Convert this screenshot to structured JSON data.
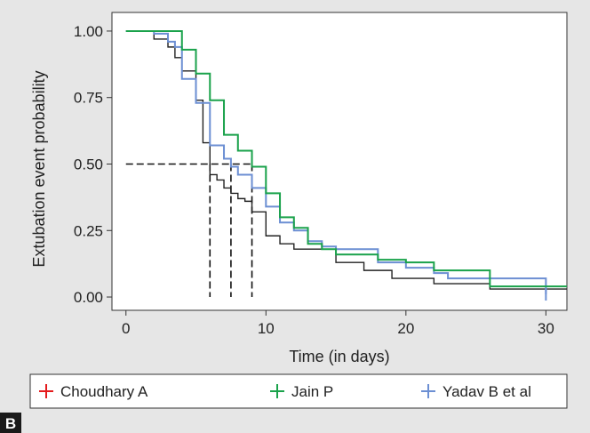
{
  "panel_label": "B",
  "chart_data": {
    "type": "line",
    "step": true,
    "title": "",
    "xlabel": "Time (in days)",
    "ylabel": "Extubation event probability",
    "xlim": [
      -1,
      31.5
    ],
    "ylim": [
      -0.05,
      1.07
    ],
    "xticks": [
      0,
      10,
      20,
      30
    ],
    "yticks": [
      0,
      0.25,
      0.5,
      0.75,
      1
    ],
    "xtick_labels": [
      "0",
      "10",
      "20",
      "30"
    ],
    "ytick_labels": [
      "0.00",
      "0.25",
      "0.50",
      "0.75",
      "1.00"
    ],
    "grid": false,
    "legend_position": "bottom",
    "series": [
      {
        "name": "Choudhary A",
        "color": "#e41a1c",
        "x": [
          0,
          2,
          3,
          3.5,
          4,
          5,
          5.5,
          6,
          6.5,
          7,
          7.5,
          8,
          8.5,
          9,
          10,
          11,
          12,
          15,
          17,
          19,
          22,
          26,
          31.5
        ],
        "y": [
          1,
          0.97,
          0.94,
          0.9,
          0.85,
          0.74,
          0.58,
          0.46,
          0.44,
          0.41,
          0.39,
          0.37,
          0.36,
          0.32,
          0.23,
          0.2,
          0.18,
          0.13,
          0.1,
          0.07,
          0.05,
          0.03,
          0.03
        ]
      },
      {
        "name": "Jain P",
        "color": "#1aa24b",
        "x": [
          0,
          2,
          4,
          5,
          6,
          7,
          8,
          9,
          10,
          11,
          12,
          13,
          14,
          15,
          18,
          20,
          22,
          26,
          31.5
        ],
        "y": [
          1,
          1,
          0.93,
          0.84,
          0.74,
          0.61,
          0.55,
          0.49,
          0.39,
          0.3,
          0.26,
          0.2,
          0.18,
          0.16,
          0.14,
          0.13,
          0.1,
          0.04,
          0.04
        ]
      },
      {
        "name": "Yadav B et al",
        "color": "#6c8fd3",
        "x": [
          0,
          2,
          3,
          3.5,
          4,
          5,
          6,
          7,
          7.5,
          8,
          9,
          10,
          11,
          12,
          13,
          14,
          15,
          18,
          20,
          22,
          23,
          30
        ],
        "y": [
          1,
          0.99,
          0.96,
          0.94,
          0.82,
          0.73,
          0.57,
          0.52,
          0.49,
          0.46,
          0.41,
          0.34,
          0.28,
          0.25,
          0.21,
          0.19,
          0.18,
          0.13,
          0.11,
          0.09,
          0.07,
          0.01
        ]
      }
    ],
    "annotations": {
      "median_reference_y": 0.5,
      "median_drop_x": [
        6,
        7.5,
        9
      ]
    }
  }
}
